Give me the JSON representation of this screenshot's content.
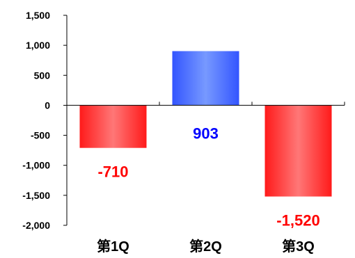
{
  "chart_data": {
    "type": "bar",
    "categories": [
      "第1Q",
      "第2Q",
      "第3Q"
    ],
    "values": [
      -710,
      903,
      -1520
    ],
    "data_labels": [
      "-710",
      "903",
      "-1,520"
    ],
    "ylim": [
      -2000,
      1500
    ],
    "yticks": [
      1500,
      1000,
      500,
      0,
      -500,
      -1000,
      -1500,
      -2000
    ],
    "ytick_labels": [
      "1,500",
      "1,000",
      "500",
      "0",
      "-500",
      "-1,000",
      "-1,500",
      "-2,000"
    ],
    "grid": false,
    "legend": "none",
    "colors": {
      "positive_bar": "#3355ff",
      "positive_bar_light": "#7799ff",
      "negative_bar": "#ff1a1a",
      "negative_bar_light": "#ff7777",
      "positive_label": "#0000ff",
      "negative_label": "#ff0000",
      "axis": "#000000"
    }
  }
}
